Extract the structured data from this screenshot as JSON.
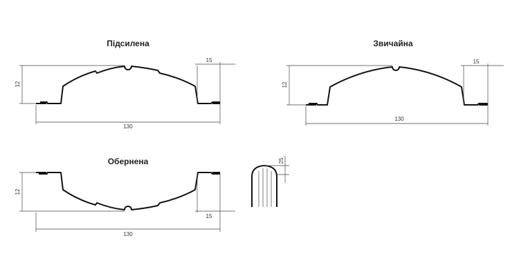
{
  "profiles": [
    {
      "title": "Підсилена",
      "height": "12",
      "width": "130",
      "edge": "15"
    },
    {
      "title": "Звичайна",
      "height": "12",
      "width": "130",
      "edge": "15"
    },
    {
      "title": "Обернена",
      "height": "12",
      "width": "130",
      "edge": "15"
    }
  ],
  "side_view": {
    "dimension": "25"
  }
}
